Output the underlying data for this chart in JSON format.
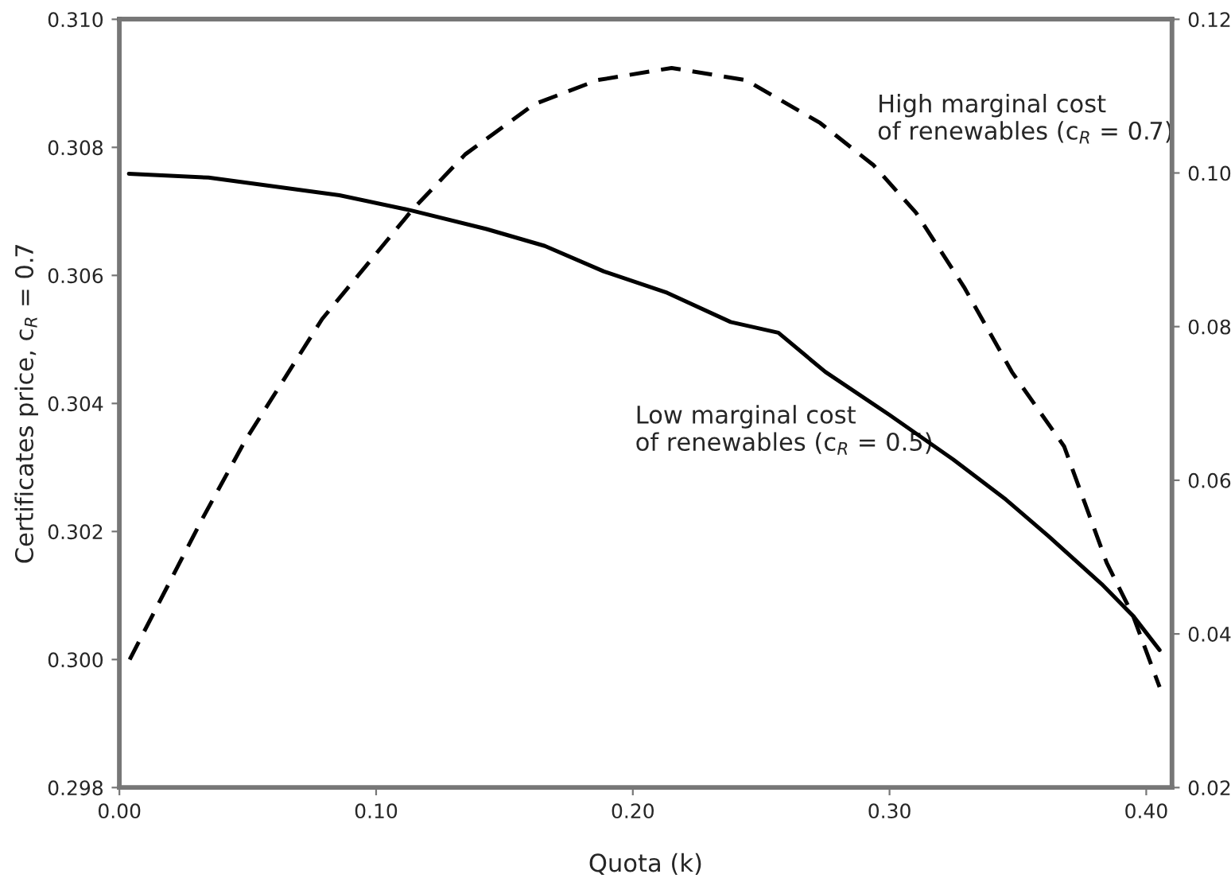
{
  "chart_data": {
    "type": "line",
    "ylabel": "Certificates price, c$_{R}$ = 0.7",
    "xlabel": "Quota (k)",
    "annotations": [
      "High marginal cost\nof renewables (c$_{R}$ = 0.7)",
      "Low marginal cost\nof renewables (c$_{R}$ = 0.5)"
    ],
    "series": [
      {
        "color": "#000000",
        "line_style": "dashed",
        "x": [
          0.004,
          0.0326,
          0.049,
          0.079,
          0.114,
          0.1347,
          0.1614,
          0.1862,
          0.2151,
          0.2441,
          0.273,
          0.2938,
          0.3103,
          0.329,
          0.3477,
          0.368,
          0.3846,
          0.3949,
          0.4052
        ],
        "values": [
          0.3,
          0.30222,
          0.30342,
          0.30532,
          0.30702,
          0.30789,
          0.30867,
          0.30905,
          0.30924,
          0.30905,
          0.30838,
          0.30772,
          0.30698,
          0.30582,
          0.30449,
          0.30333,
          0.30151,
          0.30068,
          0.29957
        ]
      },
      {
        "color": "#000000",
        "line_style": "solid",
        "axis": "y2",
        "x": [
          0.0037,
          0.0347,
          0.0857,
          0.114,
          0.143,
          0.1657,
          0.1886,
          0.2134,
          0.2381,
          0.2567,
          0.275,
          0.3,
          0.3248,
          0.3453,
          0.362,
          0.3826,
          0.395,
          0.4052
        ],
        "values": [
          0.0999,
          0.0994,
          0.0971,
          0.0951,
          0.0927,
          0.0905,
          0.0872,
          0.0844,
          0.0806,
          0.0792,
          0.0741,
          0.0685,
          0.0627,
          0.0575,
          0.0527,
          0.0465,
          0.0423,
          0.0379
        ]
      }
    ],
    "xlim": [
      0,
      0.41
    ],
    "xticks": [
      {
        "value": 0,
        "label": "0.00"
      },
      {
        "value": 0.1,
        "label": "0.10"
      },
      {
        "value": 0.2,
        "label": "0.20"
      },
      {
        "value": 0.3,
        "label": "0.30"
      },
      {
        "value": 0.4,
        "label": "0.40"
      }
    ],
    "ylim": [
      0.298,
      0.31
    ],
    "yticks": [
      {
        "value": 0.298,
        "label": "0.298"
      },
      {
        "value": 0.3,
        "label": "0.300"
      },
      {
        "value": 0.302,
        "label": "0.302"
      },
      {
        "value": 0.304,
        "label": "0.304"
      },
      {
        "value": 0.306,
        "label": "0.306"
      },
      {
        "value": 0.308,
        "label": "0.308"
      },
      {
        "value": 0.31,
        "label": "0.310"
      }
    ],
    "y2lim": [
      0.02,
      0.12
    ],
    "y2ticks": [
      {
        "value": 0.02,
        "label": "0.02"
      },
      {
        "value": 0.04,
        "label": "0.04"
      },
      {
        "value": 0.06,
        "label": "0.06"
      },
      {
        "value": 0.08,
        "label": "0.08"
      },
      {
        "value": 0.1,
        "label": "0.10"
      },
      {
        "value": 0.12,
        "label": "0.12"
      }
    ],
    "grid": false,
    "legend": false,
    "marker": "none"
  }
}
